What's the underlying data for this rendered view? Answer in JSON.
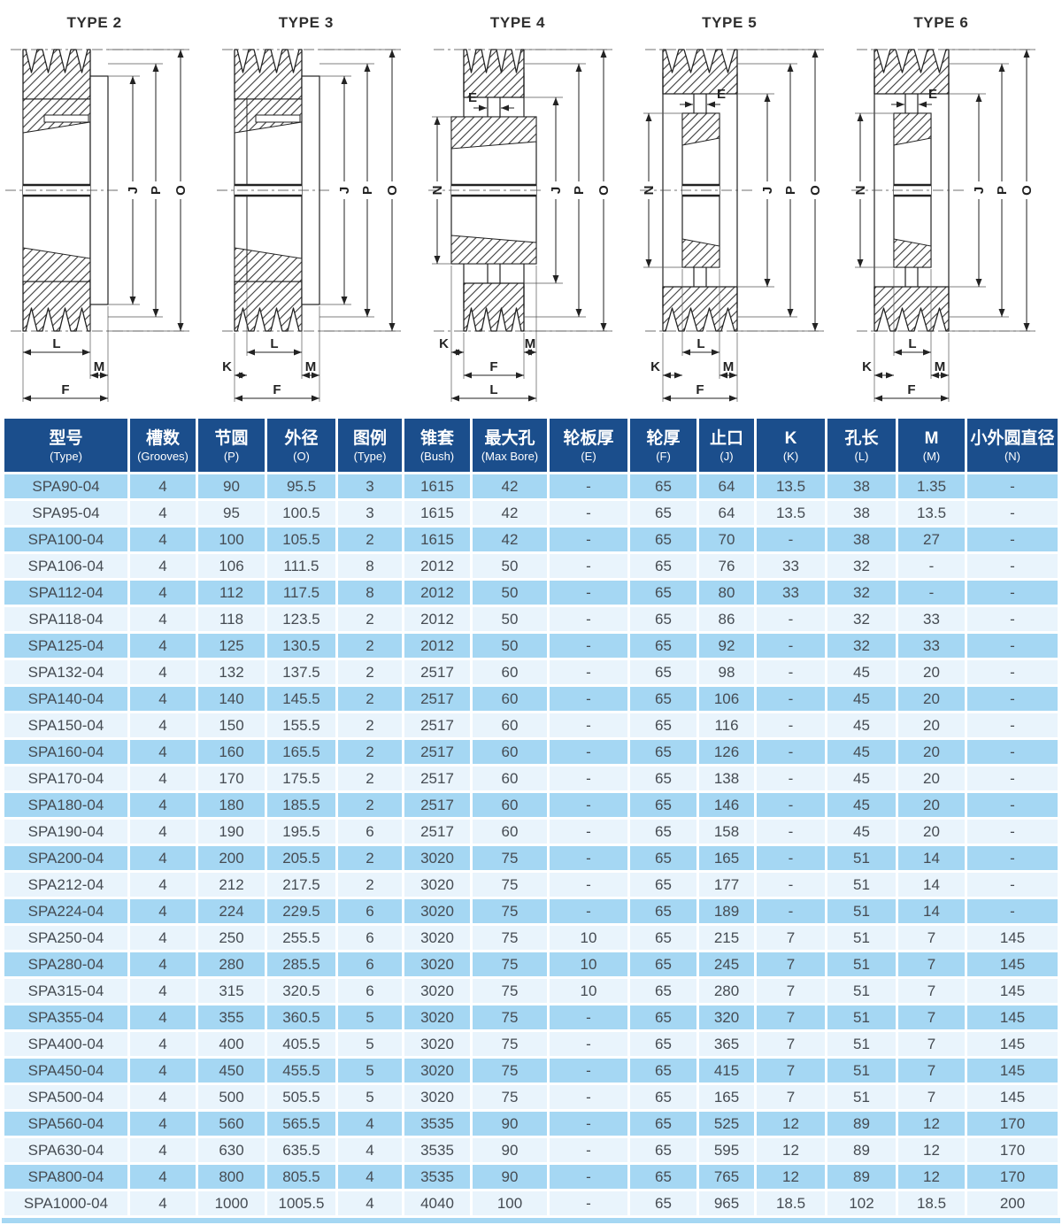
{
  "drawings": [
    {
      "title": "TYPE 2",
      "dims": {
        "right": [
          "J",
          "P",
          "O"
        ],
        "bottom": [
          "L",
          "M",
          "F"
        ]
      }
    },
    {
      "title": "TYPE 3",
      "dims": {
        "right": [
          "J",
          "P",
          "O"
        ],
        "bottom": [
          "L",
          "K",
          "M",
          "F"
        ]
      }
    },
    {
      "title": "TYPE 4",
      "dims": {
        "right": [
          "J",
          "P",
          "O"
        ],
        "bottom": [
          "K",
          "M",
          "F",
          "L"
        ],
        "top": [
          "E"
        ],
        "left": [
          "N"
        ]
      }
    },
    {
      "title": "TYPE 5",
      "dims": {
        "right": [
          "J",
          "P",
          "O"
        ],
        "bottom": [
          "L",
          "K",
          "M",
          "F"
        ],
        "top": [
          "E"
        ],
        "left": [
          "N"
        ]
      }
    },
    {
      "title": "TYPE 6",
      "dims": {
        "right": [
          "J",
          "P",
          "O"
        ],
        "bottom": [
          "L",
          "K",
          "M",
          "F"
        ],
        "top": [
          "E"
        ],
        "left": [
          "N"
        ]
      }
    }
  ],
  "table": {
    "columns": [
      {
        "zh": "型号",
        "en": "(Type)"
      },
      {
        "zh": "槽数",
        "en": "(Grooves)"
      },
      {
        "zh": "节圆",
        "en": "(P)"
      },
      {
        "zh": "外径",
        "en": "(O)"
      },
      {
        "zh": "图例",
        "en": "(Type)"
      },
      {
        "zh": "锥套",
        "en": "(Bush)"
      },
      {
        "zh": "最大孔",
        "en": "(Max Bore)"
      },
      {
        "zh": "轮板厚",
        "en": "(E)"
      },
      {
        "zh": "轮厚",
        "en": "(F)"
      },
      {
        "zh": "止口",
        "en": "(J)"
      },
      {
        "zh": "K",
        "en": "(K)"
      },
      {
        "zh": "孔长",
        "en": "(L)"
      },
      {
        "zh": "M",
        "en": "(M)"
      },
      {
        "zh": "小外圆直径",
        "en": "(N)"
      }
    ],
    "rows": [
      [
        "SPA90-04",
        "4",
        "90",
        "95.5",
        "3",
        "1615",
        "42",
        "-",
        "65",
        "64",
        "13.5",
        "38",
        "1.35",
        "-"
      ],
      [
        "SPA95-04",
        "4",
        "95",
        "100.5",
        "3",
        "1615",
        "42",
        "-",
        "65",
        "64",
        "13.5",
        "38",
        "13.5",
        "-"
      ],
      [
        "SPA100-04",
        "4",
        "100",
        "105.5",
        "2",
        "1615",
        "42",
        "-",
        "65",
        "70",
        "-",
        "38",
        "27",
        "-"
      ],
      [
        "SPA106-04",
        "4",
        "106",
        "111.5",
        "8",
        "2012",
        "50",
        "-",
        "65",
        "76",
        "33",
        "32",
        "-",
        "-"
      ],
      [
        "SPA112-04",
        "4",
        "112",
        "117.5",
        "8",
        "2012",
        "50",
        "-",
        "65",
        "80",
        "33",
        "32",
        "-",
        "-"
      ],
      [
        "SPA118-04",
        "4",
        "118",
        "123.5",
        "2",
        "2012",
        "50",
        "-",
        "65",
        "86",
        "-",
        "32",
        "33",
        "-"
      ],
      [
        "SPA125-04",
        "4",
        "125",
        "130.5",
        "2",
        "2012",
        "50",
        "-",
        "65",
        "92",
        "-",
        "32",
        "33",
        "-"
      ],
      [
        "SPA132-04",
        "4",
        "132",
        "137.5",
        "2",
        "2517",
        "60",
        "-",
        "65",
        "98",
        "-",
        "45",
        "20",
        "-"
      ],
      [
        "SPA140-04",
        "4",
        "140",
        "145.5",
        "2",
        "2517",
        "60",
        "-",
        "65",
        "106",
        "-",
        "45",
        "20",
        "-"
      ],
      [
        "SPA150-04",
        "4",
        "150",
        "155.5",
        "2",
        "2517",
        "60",
        "-",
        "65",
        "116",
        "-",
        "45",
        "20",
        "-"
      ],
      [
        "SPA160-04",
        "4",
        "160",
        "165.5",
        "2",
        "2517",
        "60",
        "-",
        "65",
        "126",
        "-",
        "45",
        "20",
        "-"
      ],
      [
        "SPA170-04",
        "4",
        "170",
        "175.5",
        "2",
        "2517",
        "60",
        "-",
        "65",
        "138",
        "-",
        "45",
        "20",
        "-"
      ],
      [
        "SPA180-04",
        "4",
        "180",
        "185.5",
        "2",
        "2517",
        "60",
        "-",
        "65",
        "146",
        "-",
        "45",
        "20",
        "-"
      ],
      [
        "SPA190-04",
        "4",
        "190",
        "195.5",
        "6",
        "2517",
        "60",
        "-",
        "65",
        "158",
        "-",
        "45",
        "20",
        "-"
      ],
      [
        "SPA200-04",
        "4",
        "200",
        "205.5",
        "2",
        "3020",
        "75",
        "-",
        "65",
        "165",
        "-",
        "51",
        "14",
        "-"
      ],
      [
        "SPA212-04",
        "4",
        "212",
        "217.5",
        "2",
        "3020",
        "75",
        "-",
        "65",
        "177",
        "-",
        "51",
        "14",
        "-"
      ],
      [
        "SPA224-04",
        "4",
        "224",
        "229.5",
        "6",
        "3020",
        "75",
        "-",
        "65",
        "189",
        "-",
        "51",
        "14",
        "-"
      ],
      [
        "SPA250-04",
        "4",
        "250",
        "255.5",
        "6",
        "3020",
        "75",
        "10",
        "65",
        "215",
        "7",
        "51",
        "7",
        "145"
      ],
      [
        "SPA280-04",
        "4",
        "280",
        "285.5",
        "6",
        "3020",
        "75",
        "10",
        "65",
        "245",
        "7",
        "51",
        "7",
        "145"
      ],
      [
        "SPA315-04",
        "4",
        "315",
        "320.5",
        "6",
        "3020",
        "75",
        "10",
        "65",
        "280",
        "7",
        "51",
        "7",
        "145"
      ],
      [
        "SPA355-04",
        "4",
        "355",
        "360.5",
        "5",
        "3020",
        "75",
        "-",
        "65",
        "320",
        "7",
        "51",
        "7",
        "145"
      ],
      [
        "SPA400-04",
        "4",
        "400",
        "405.5",
        "5",
        "3020",
        "75",
        "-",
        "65",
        "365",
        "7",
        "51",
        "7",
        "145"
      ],
      [
        "SPA450-04",
        "4",
        "450",
        "455.5",
        "5",
        "3020",
        "75",
        "-",
        "65",
        "415",
        "7",
        "51",
        "7",
        "145"
      ],
      [
        "SPA500-04",
        "4",
        "500",
        "505.5",
        "5",
        "3020",
        "75",
        "-",
        "65",
        "165",
        "7",
        "51",
        "7",
        "145"
      ],
      [
        "SPA560-04",
        "4",
        "560",
        "565.5",
        "4",
        "3535",
        "90",
        "-",
        "65",
        "525",
        "12",
        "89",
        "12",
        "170"
      ],
      [
        "SPA630-04",
        "4",
        "630",
        "635.5",
        "4",
        "3535",
        "90",
        "-",
        "65",
        "595",
        "12",
        "89",
        "12",
        "170"
      ],
      [
        "SPA800-04",
        "4",
        "800",
        "805.5",
        "4",
        "3535",
        "90",
        "-",
        "65",
        "765",
        "12",
        "89",
        "12",
        "170"
      ],
      [
        "SPA1000-04",
        "4",
        "1000",
        "1005.5",
        "4",
        "4040",
        "100",
        "-",
        "65",
        "965",
        "18.5",
        "102",
        "18.5",
        "200"
      ]
    ]
  },
  "colors": {
    "header_bg": "#1b4e8c",
    "row_alt": "#a5d7f3",
    "row_base": "#e9f4fc",
    "cell_text": "#454b52",
    "line": "#222222"
  }
}
